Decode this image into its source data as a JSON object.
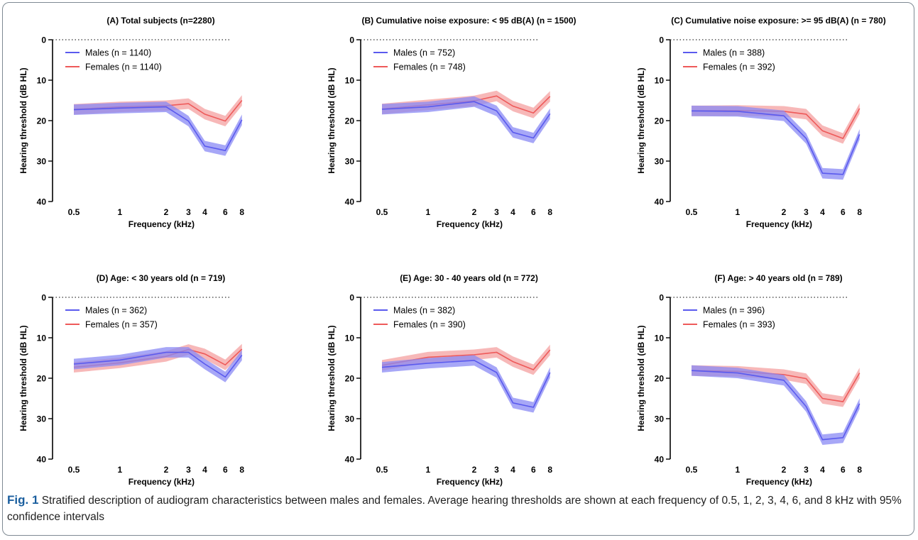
{
  "colors": {
    "males": "#5a5aee",
    "males_band": "#8a8af4",
    "females": "#ee5a5a",
    "females_band": "#f4a0a0",
    "axis": "#000000",
    "caption_label": "#1a5e9e"
  },
  "legend_labels": {
    "males": "Males",
    "females": "Females"
  },
  "caption": {
    "label": "Fig. 1",
    "text": "Stratified description of audiogram characteristics between males and females. Average hearing thresholds are shown at each frequency of 0.5, 1, 2, 3, 4, 6, and 8 kHz with 95% confidence intervals"
  },
  "chart_data": [
    {
      "type": "line",
      "title": "(A) Total subjects (n=2280)",
      "xlabel": "Frequency (kHz)",
      "ylabel": "Hearing threshold (dB HL)",
      "x": [
        "0.5",
        "1",
        "2",
        "3",
        "4",
        "6",
        "8"
      ],
      "ylim": [
        40,
        0
      ],
      "yticks": [
        "0",
        "10",
        "20",
        "30",
        "40"
      ],
      "legend_position": "top-left",
      "series": [
        {
          "name": "Males (n = 1140)",
          "values": [
            17.3,
            16.9,
            16.6,
            20.1,
            26.3,
            27.4,
            19.8
          ]
        },
        {
          "name": "Females (n = 1140)",
          "values": [
            17.2,
            16.6,
            16.3,
            15.8,
            18.4,
            20.1,
            15.0
          ]
        }
      ]
    },
    {
      "type": "line",
      "title": "(B) Cumulative noise exposure: < 95 dB(A) (n = 1500)",
      "xlabel": "Frequency (kHz)",
      "ylabel": "Hearing threshold (dB HL)",
      "x": [
        "0.5",
        "1",
        "2",
        "3",
        "4",
        "6",
        "8"
      ],
      "ylim": [
        40,
        0
      ],
      "yticks": [
        "0",
        "10",
        "20",
        "30",
        "40"
      ],
      "legend_position": "top-left",
      "series": [
        {
          "name": "Males (n = 752)",
          "values": [
            17.2,
            16.6,
            15.3,
            17.6,
            22.9,
            24.3,
            18.3
          ]
        },
        {
          "name": "Females (n = 748)",
          "values": [
            17.1,
            16.1,
            15.1,
            13.9,
            16.4,
            18.1,
            14.0
          ]
        }
      ]
    },
    {
      "type": "line",
      "title": "(C) Cumulative noise exposure: >= 95 dB(A) (n = 780)",
      "xlabel": "Frequency (kHz)",
      "ylabel": "Hearing threshold (dB HL)",
      "x": [
        "0.5",
        "1",
        "2",
        "3",
        "4",
        "6",
        "8"
      ],
      "ylim": [
        40,
        0
      ],
      "yticks": [
        "0",
        "10",
        "20",
        "30",
        "40"
      ],
      "legend_position": "top-left",
      "series": [
        {
          "name": "Males (n = 388)",
          "values": [
            17.6,
            17.7,
            18.8,
            24.4,
            33.0,
            33.3,
            23.4
          ]
        },
        {
          "name": "Females (n = 392)",
          "values": [
            17.6,
            17.5,
            17.7,
            18.4,
            22.5,
            24.4,
            17.0
          ]
        }
      ]
    },
    {
      "type": "line",
      "title": "(D) Age: < 30 years old (n = 719)",
      "xlabel": "Frequency (kHz)",
      "ylabel": "Hearing threshold (dB HL)",
      "x": [
        "0.5",
        "1",
        "2",
        "3",
        "4",
        "6",
        "8"
      ],
      "ylim": [
        40,
        0
      ],
      "yticks": [
        "0",
        "10",
        "20",
        "30",
        "40"
      ],
      "legend_position": "top-left",
      "series": [
        {
          "name": "Males (n = 362)",
          "values": [
            16.5,
            15.5,
            13.6,
            13.6,
            16.5,
            19.7,
            14.3
          ]
        },
        {
          "name": "Females (n = 357)",
          "values": [
            17.3,
            16.2,
            14.6,
            12.9,
            14.0,
            16.7,
            12.8
          ]
        }
      ]
    },
    {
      "type": "line",
      "title": "(E) Age: 30 - 40 years old (n = 772)",
      "xlabel": "Frequency (kHz)",
      "ylabel": "Hearing threshold (dB HL)",
      "x": [
        "0.5",
        "1",
        "2",
        "3",
        "4",
        "6",
        "8"
      ],
      "ylim": [
        40,
        0
      ],
      "yticks": [
        "0",
        "10",
        "20",
        "30",
        "40"
      ],
      "legend_position": "top-left",
      "series": [
        {
          "name": "Males (n = 382)",
          "values": [
            17.3,
            16.3,
            15.6,
            18.6,
            26.1,
            27.2,
            18.6
          ]
        },
        {
          "name": "Females (n = 390)",
          "values": [
            16.8,
            14.8,
            14.2,
            13.6,
            15.9,
            17.9,
            13.0
          ]
        }
      ]
    },
    {
      "type": "line",
      "title": "(F) Age: > 40 years old (n = 789)",
      "xlabel": "Frequency (kHz)",
      "ylabel": "Hearing threshold (dB HL)",
      "x": [
        "0.5",
        "1",
        "2",
        "3",
        "4",
        "6",
        "8"
      ],
      "ylim": [
        40,
        0
      ],
      "yticks": [
        "0",
        "10",
        "20",
        "30",
        "40"
      ],
      "legend_position": "top-left",
      "series": [
        {
          "name": "Males (n = 396)",
          "values": [
            18.1,
            18.7,
            20.5,
            27.0,
            35.2,
            34.7,
            26.3
          ]
        },
        {
          "name": "Females (n = 393)",
          "values": [
            18.1,
            18.3,
            19.1,
            20.1,
            25.0,
            25.8,
            18.7
          ]
        }
      ]
    }
  ]
}
